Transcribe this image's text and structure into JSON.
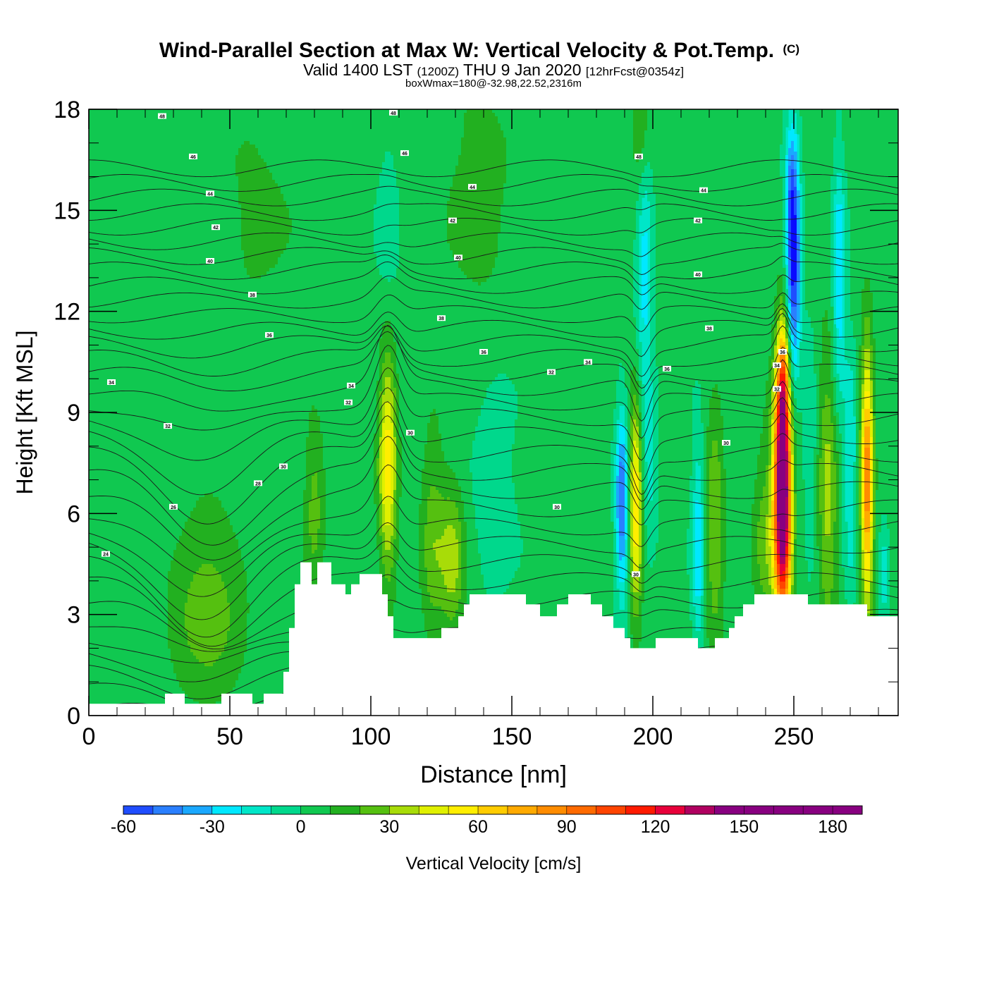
{
  "chart_data": {
    "type": "heatmap",
    "title": "Wind-Parallel Section at Max W: Vertical Velocity & Pot.Temp.",
    "copyright_mark": "(C)",
    "subtitle_main": "Valid 1400 LST",
    "subtitle_z": "(1200Z)",
    "subtitle_date": "THU 9 Jan 2020",
    "subtitle_fcst": "[12hrFcst@0354z]",
    "subtitle2": "boxWmax=180@-32.98,22.52,2316m",
    "xlabel": "Distance [nm]",
    "ylabel": "Height [Kft MSL]",
    "xlim": [
      0,
      287
    ],
    "ylim": [
      0,
      18
    ],
    "xticks": [
      0,
      50,
      100,
      150,
      200,
      250
    ],
    "yticks": [
      0,
      3,
      6,
      9,
      12,
      15,
      18
    ],
    "colorbar": {
      "label": "Vertical Velocity [cm/s]",
      "min": -60,
      "max": 190,
      "step": 10,
      "ticks": [
        -60,
        -30,
        0,
        30,
        60,
        90,
        120,
        150,
        180
      ],
      "colors": [
        "#0a0aff",
        "#1f4dff",
        "#2a7fff",
        "#1aa8ff",
        "#00e8ff",
        "#00e6c8",
        "#00d88c",
        "#10c850",
        "#22b020",
        "#55c010",
        "#a8dc08",
        "#e0f000",
        "#ffee00",
        "#ffcc00",
        "#ffaa00",
        "#ff8c00",
        "#ff6a00",
        "#ff4400",
        "#ff1a00",
        "#e8003a",
        "#b00060",
        "#880080"
      ]
    },
    "terrain": [
      [
        0,
        0.35
      ],
      [
        27,
        0.35
      ],
      [
        27,
        0.65
      ],
      [
        34,
        0.65
      ],
      [
        34,
        0.35
      ],
      [
        47,
        0.35
      ],
      [
        47,
        0.65
      ],
      [
        58,
        0.65
      ],
      [
        58,
        0.35
      ],
      [
        62,
        0.35
      ],
      [
        62,
        0.65
      ],
      [
        69,
        0.65
      ],
      [
        69,
        1.3
      ],
      [
        71,
        1.3
      ],
      [
        71,
        2.6
      ],
      [
        73,
        2.6
      ],
      [
        73,
        3.9
      ],
      [
        75,
        3.9
      ],
      [
        75,
        4.55
      ],
      [
        79,
        4.55
      ],
      [
        79,
        3.9
      ],
      [
        81,
        3.9
      ],
      [
        81,
        4.55
      ],
      [
        86,
        4.55
      ],
      [
        86,
        3.9
      ],
      [
        91,
        3.9
      ],
      [
        91,
        3.6
      ],
      [
        93,
        3.6
      ],
      [
        93,
        3.9
      ],
      [
        96,
        3.9
      ],
      [
        96,
        4.2
      ],
      [
        104,
        4.2
      ],
      [
        104,
        3.6
      ],
      [
        106,
        3.6
      ],
      [
        106,
        2.95
      ],
      [
        108,
        2.95
      ],
      [
        108,
        2.3
      ],
      [
        125,
        2.3
      ],
      [
        125,
        2.6
      ],
      [
        131,
        2.6
      ],
      [
        131,
        2.95
      ],
      [
        133,
        2.95
      ],
      [
        133,
        3.3
      ],
      [
        135,
        3.3
      ],
      [
        135,
        3.6
      ],
      [
        155,
        3.6
      ],
      [
        155,
        3.3
      ],
      [
        160,
        3.3
      ],
      [
        160,
        2.95
      ],
      [
        166,
        2.95
      ],
      [
        166,
        3.3
      ],
      [
        170,
        3.3
      ],
      [
        170,
        3.6
      ],
      [
        178,
        3.6
      ],
      [
        178,
        3.3
      ],
      [
        182,
        3.3
      ],
      [
        182,
        2.95
      ],
      [
        186,
        2.95
      ],
      [
        186,
        2.6
      ],
      [
        190,
        2.6
      ],
      [
        190,
        2.3
      ],
      [
        192,
        2.3
      ],
      [
        192,
        2.0
      ],
      [
        201,
        2.0
      ],
      [
        201,
        2.3
      ],
      [
        216,
        2.3
      ],
      [
        216,
        2.0
      ],
      [
        222,
        2.0
      ],
      [
        222,
        2.3
      ],
      [
        227,
        2.3
      ],
      [
        227,
        2.6
      ],
      [
        229,
        2.6
      ],
      [
        229,
        2.95
      ],
      [
        232,
        2.95
      ],
      [
        232,
        3.3
      ],
      [
        236,
        3.3
      ],
      [
        236,
        3.6
      ],
      [
        255,
        3.6
      ],
      [
        255,
        3.3
      ],
      [
        276,
        3.3
      ],
      [
        276,
        2.95
      ],
      [
        287,
        2.95
      ]
    ],
    "w_features": [
      {
        "x": 42,
        "z": 3.2,
        "sx": 9,
        "sz": 2.0,
        "w": 22
      },
      {
        "x": 80,
        "z": 6.2,
        "sx": 2.5,
        "sz": 1.8,
        "w": 20
      },
      {
        "x": 106,
        "z": 7.6,
        "sx": 2.2,
        "sz": 2.4,
        "w": 52
      },
      {
        "x": 122,
        "z": 5.2,
        "sx": 3.0,
        "sz": 2.2,
        "w": 22
      },
      {
        "x": 129,
        "z": 4.6,
        "sx": 3.0,
        "sz": 1.6,
        "w": 30
      },
      {
        "x": 144,
        "z": 6.8,
        "sx": 6.0,
        "sz": 2.5,
        "w": -10
      },
      {
        "x": 189,
        "z": 6.3,
        "sx": 1.6,
        "sz": 1.9,
        "w": -55
      },
      {
        "x": 194,
        "z": 6.3,
        "sx": 1.6,
        "sz": 2.2,
        "w": 58
      },
      {
        "x": 197,
        "z": 13.5,
        "sx": 2.0,
        "sz": 3.5,
        "w": -28
      },
      {
        "x": 196,
        "z": 17.5,
        "sx": 2.2,
        "sz": 1.5,
        "w": 26
      },
      {
        "x": 199,
        "z": 7.5,
        "sx": 2.0,
        "sz": 1.8,
        "w": -16
      },
      {
        "x": 216,
        "z": 5.0,
        "sx": 1.6,
        "sz": 2.2,
        "w": -32
      },
      {
        "x": 222,
        "z": 5.6,
        "sx": 2.2,
        "sz": 2.6,
        "w": 26
      },
      {
        "x": 246,
        "z": 6.6,
        "sx": 2.1,
        "sz": 2.6,
        "w": 175
      },
      {
        "x": 246,
        "z": 9.8,
        "sx": 1.3,
        "sz": 1.3,
        "w": 45
      },
      {
        "x": 250,
        "z": 13.2,
        "sx": 1.7,
        "sz": 2.3,
        "w": -62
      },
      {
        "x": 249,
        "z": 15.5,
        "sx": 1.6,
        "sz": 1.6,
        "w": -32
      },
      {
        "x": 256,
        "z": 7.8,
        "sx": 1.6,
        "sz": 2.6,
        "w": -14
      },
      {
        "x": 262,
        "z": 6.5,
        "sx": 2.4,
        "sz": 3.0,
        "w": 30
      },
      {
        "x": 266,
        "z": 13.0,
        "sx": 1.6,
        "sz": 2.5,
        "w": -35
      },
      {
        "x": 270,
        "z": 7.3,
        "sx": 1.6,
        "sz": 2.5,
        "w": -26
      },
      {
        "x": 276,
        "z": 7.0,
        "sx": 1.5,
        "sz": 2.6,
        "w": 85
      },
      {
        "x": 282,
        "z": 4.2,
        "sx": 1.2,
        "sz": 1.0,
        "w": -22
      },
      {
        "x": 138,
        "z": 15.5,
        "sx": 8.0,
        "sz": 2.5,
        "w": 12
      },
      {
        "x": 60,
        "z": 15.0,
        "sx": 10.0,
        "sz": 3.0,
        "w": 8
      },
      {
        "x": 35,
        "z": 10.0,
        "sx": 10.0,
        "sz": 2.5,
        "w": -2
      },
      {
        "x": 106,
        "z": 14.0,
        "sx": 3.0,
        "sz": 2.5,
        "w": -10
      },
      {
        "x": 240,
        "z": 5.3,
        "sx": 3.0,
        "sz": 2.0,
        "w": 22
      }
    ],
    "isentropes": {
      "count": 34,
      "labels": [
        {
          "x": 26,
          "z": 17.8,
          "text": "48"
        },
        {
          "x": 37,
          "z": 16.6,
          "text": "46"
        },
        {
          "x": 43,
          "z": 15.5,
          "text": "44"
        },
        {
          "x": 45,
          "z": 14.5,
          "text": "42"
        },
        {
          "x": 43,
          "z": 13.5,
          "text": "40"
        },
        {
          "x": 58,
          "z": 12.5,
          "text": "38"
        },
        {
          "x": 64,
          "z": 11.3,
          "text": "36"
        },
        {
          "x": 8,
          "z": 9.9,
          "text": "34"
        },
        {
          "x": 28,
          "z": 8.6,
          "text": "32"
        },
        {
          "x": 69,
          "z": 7.4,
          "text": "30"
        },
        {
          "x": 60,
          "z": 6.9,
          "text": "28"
        },
        {
          "x": 30,
          "z": 6.2,
          "text": "26"
        },
        {
          "x": 6,
          "z": 4.8,
          "text": "24"
        },
        {
          "x": 108,
          "z": 17.9,
          "text": "48"
        },
        {
          "x": 112,
          "z": 16.7,
          "text": "46"
        },
        {
          "x": 136,
          "z": 15.7,
          "text": "44"
        },
        {
          "x": 129,
          "z": 14.7,
          "text": "42"
        },
        {
          "x": 131,
          "z": 13.6,
          "text": "40"
        },
        {
          "x": 125,
          "z": 11.8,
          "text": "38"
        },
        {
          "x": 140,
          "z": 10.8,
          "text": "36"
        },
        {
          "x": 93,
          "z": 9.8,
          "text": "34"
        },
        {
          "x": 92,
          "z": 9.3,
          "text": "32"
        },
        {
          "x": 114,
          "z": 8.4,
          "text": "30"
        },
        {
          "x": 164,
          "z": 10.2,
          "text": "32"
        },
        {
          "x": 177,
          "z": 10.5,
          "text": "34"
        },
        {
          "x": 166,
          "z": 6.2,
          "text": "30"
        },
        {
          "x": 195,
          "z": 16.6,
          "text": "48"
        },
        {
          "x": 218,
          "z": 15.6,
          "text": "44"
        },
        {
          "x": 216,
          "z": 14.7,
          "text": "42"
        },
        {
          "x": 216,
          "z": 13.1,
          "text": "40"
        },
        {
          "x": 220,
          "z": 11.5,
          "text": "38"
        },
        {
          "x": 205,
          "z": 10.3,
          "text": "36"
        },
        {
          "x": 226,
          "z": 8.1,
          "text": "30"
        },
        {
          "x": 194,
          "z": 4.2,
          "text": "30"
        },
        {
          "x": 244,
          "z": 10.4,
          "text": "34"
        },
        {
          "x": 244,
          "z": 9.7,
          "text": "32"
        },
        {
          "x": 246,
          "z": 10.8,
          "text": "36"
        }
      ]
    }
  }
}
